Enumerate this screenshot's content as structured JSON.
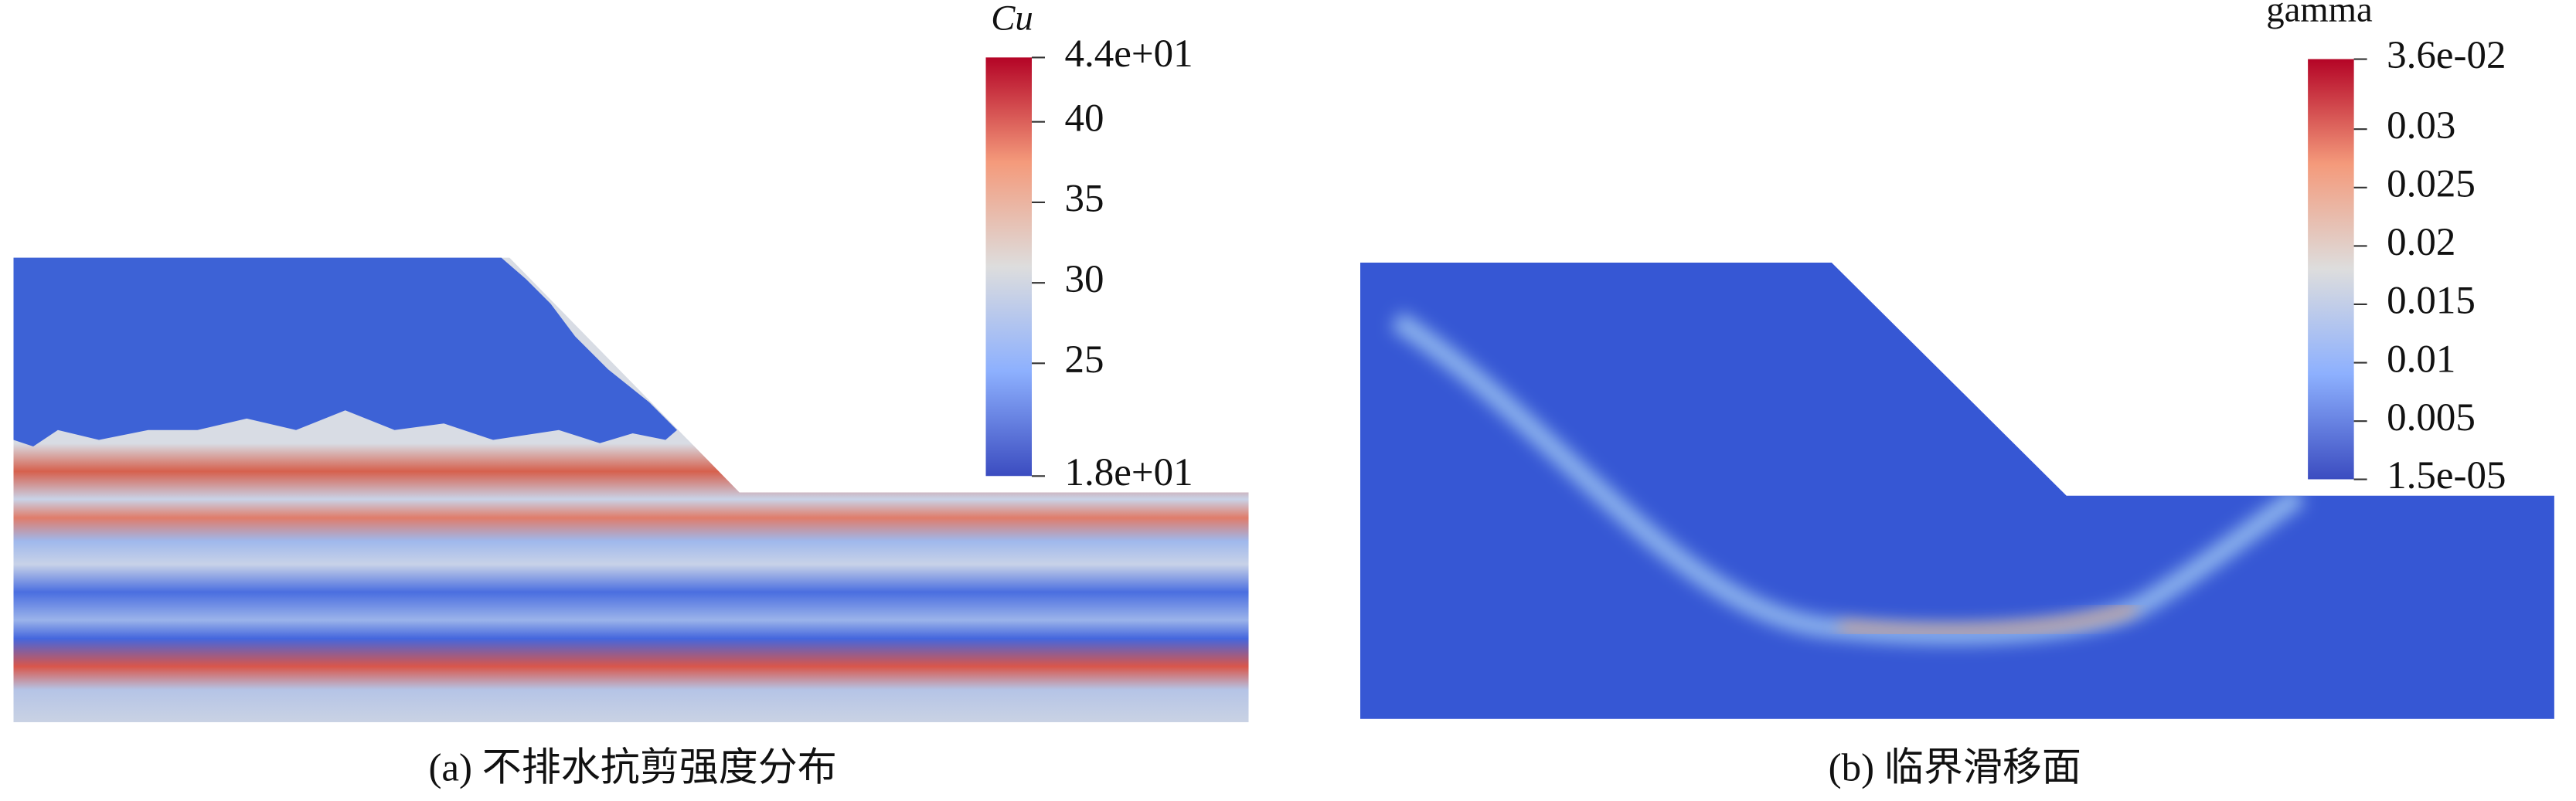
{
  "panels": [
    {
      "colorbar": {
        "title": "Cu",
        "lim": [
          18,
          44
        ],
        "ticks": [
          {
            "value": 44,
            "label": "4.4e+01"
          },
          40,
          35,
          30,
          25,
          {
            "value": 18,
            "label": "1.8e+01"
          }
        ]
      },
      "caption": "(a) 不排水抗剪强度分布"
    },
    {
      "colorbar": {
        "title": "gamma",
        "lim": [
          1.5e-05,
          0.036
        ],
        "ticks": [
          {
            "value": 0.036,
            "label": "3.6e-02"
          },
          0.03,
          0.025,
          0.02,
          0.015,
          0.01,
          0.005,
          {
            "value": 1.5e-05,
            "label": "1.5e-05"
          }
        ]
      },
      "caption": "(b) 临界滑移面"
    }
  ]
}
